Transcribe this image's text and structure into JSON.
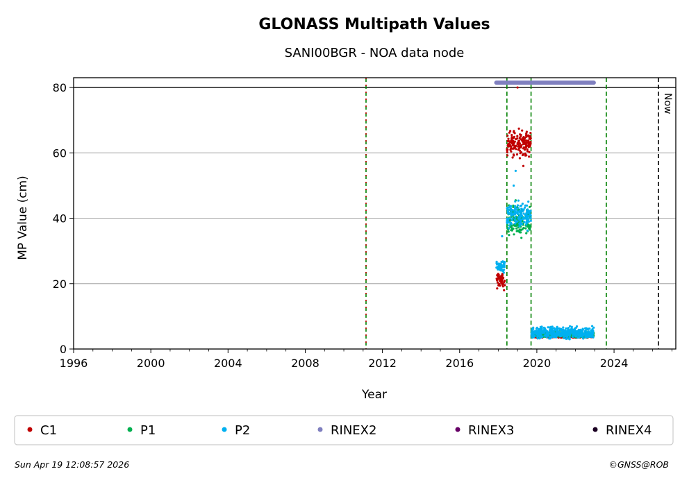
{
  "chart_data": {
    "type": "scatter",
    "title": "GLONASS Multipath Values",
    "subtitle": "SANI00BGR - NOA data node",
    "xlabel": "Year",
    "ylabel": "MP Value (cm)",
    "xlim": [
      1996,
      2027.2
    ],
    "ylim": [
      0,
      83
    ],
    "x_ticks": [
      "1996",
      "2000",
      "2004",
      "2008",
      "2012",
      "2016",
      "2020",
      "2024"
    ],
    "y_ticks": [
      "0",
      "20",
      "40",
      "60",
      "80"
    ],
    "grid": "horizontal",
    "legend_position": "bottom",
    "reference_line_y": 80,
    "vertical_markers": [
      {
        "x": 2011.15,
        "style": "green-red dashed"
      },
      {
        "x": 2018.45,
        "style": "green dashed"
      },
      {
        "x": 2019.7,
        "style": "green dashed"
      },
      {
        "x": 2023.6,
        "style": "green dashed"
      },
      {
        "x": 2026.3,
        "style": "black dashed",
        "label": "Now"
      }
    ],
    "rinex2_availability": {
      "start": 2017.9,
      "end": 2022.95,
      "y": 81.5
    },
    "series": [
      {
        "name": "C1",
        "color": "#c00000",
        "segments": [
          {
            "x": [
              2017.9,
              2018.35
            ],
            "y": [
              17,
              23
            ],
            "mean": 21
          },
          {
            "x": [
              2018.45,
              2019.7
            ],
            "y": [
              58,
              68
            ],
            "mean": 63
          },
          {
            "x": [
              2019.72,
              2022.95
            ],
            "y": [
              3.5,
              5
            ],
            "mean": 4
          }
        ],
        "outliers": [
          [
            2019.0,
            80
          ],
          [
            2019.3,
            56
          ],
          [
            2018.3,
            18
          ]
        ]
      },
      {
        "name": "P1",
        "color": "#00b050",
        "segments": [
          {
            "x": [
              2018.45,
              2019.7
            ],
            "y": [
              34,
              46
            ],
            "mean": 39
          },
          {
            "x": [
              2019.72,
              2022.95
            ],
            "y": [
              3.5,
              6
            ],
            "mean": 4.5
          }
        ],
        "outliers": [
          [
            2018.9,
            45.5
          ],
          [
            2019.2,
            34
          ]
        ]
      },
      {
        "name": "P2",
        "color": "#00b0f0",
        "segments": [
          {
            "x": [
              2017.9,
              2018.35
            ],
            "y": [
              23,
              28
            ],
            "mean": 25.5
          },
          {
            "x": [
              2018.45,
              2019.7
            ],
            "y": [
              36,
              46
            ],
            "mean": 41
          },
          {
            "x": [
              2019.72,
              2022.95
            ],
            "y": [
              3,
              7.5
            ],
            "mean": 5
          }
        ],
        "outliers": [
          [
            2018.9,
            54.5
          ],
          [
            2018.8,
            50
          ],
          [
            2018.2,
            34.5
          ]
        ]
      },
      {
        "name": "RINEX2",
        "color": "#7f7fbf"
      },
      {
        "name": "RINEX3",
        "color": "#660066"
      },
      {
        "name": "RINEX4",
        "color": "#1a0022"
      }
    ]
  },
  "footer": {
    "timestamp": "Sun Apr 19 12:08:57 2026",
    "credit": "©GNSS@ROB"
  }
}
